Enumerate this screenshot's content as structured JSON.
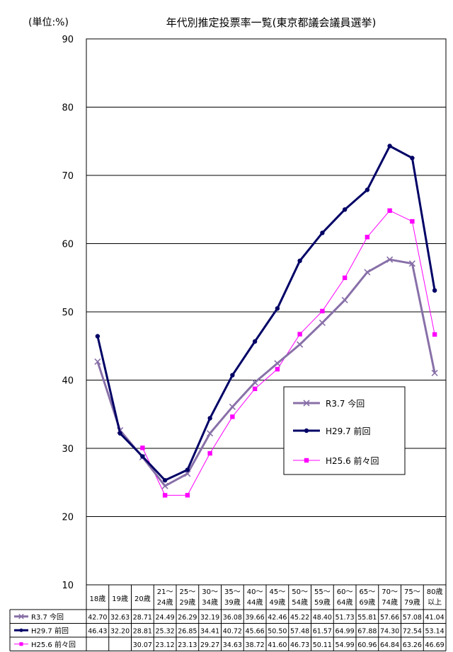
{
  "chart_data": {
    "type": "line",
    "title": "年代別推定投票率一覧(東京都議会議員選挙)",
    "unit_label": "(単位:%)",
    "ylim": [
      10,
      90
    ],
    "yticks": [
      10,
      20,
      30,
      40,
      50,
      60,
      70,
      80,
      90
    ],
    "grid": true,
    "legend_position": "center-right",
    "categories": [
      [
        "18歳"
      ],
      [
        "19歳"
      ],
      [
        "20歳"
      ],
      [
        "21～",
        "24歳"
      ],
      [
        "25～",
        "29歳"
      ],
      [
        "30～",
        "34歳"
      ],
      [
        "35～",
        "39歳"
      ],
      [
        "40～",
        "44歳"
      ],
      [
        "45～",
        "49歳"
      ],
      [
        "50～",
        "54歳"
      ],
      [
        "55～",
        "59歳"
      ],
      [
        "60～",
        "64歳"
      ],
      [
        "65～",
        "69歳"
      ],
      [
        "70～",
        "74歳"
      ],
      [
        "75～",
        "79歳"
      ],
      [
        "80歳",
        "以上"
      ]
    ],
    "series": [
      {
        "name": "R3.7 今回",
        "color": "#8870A8",
        "marker": "x",
        "values": [
          42.7,
          32.63,
          28.71,
          24.49,
          26.29,
          32.19,
          36.08,
          39.66,
          42.46,
          45.22,
          48.4,
          51.73,
          55.81,
          57.66,
          57.08,
          41.04
        ],
        "labels": [
          "42.70",
          "32.63",
          "28.71",
          "24.49",
          "26.29",
          "32.19",
          "36.08",
          "39.66",
          "42.46",
          "45.22",
          "48.40",
          "51.73",
          "55.81",
          "57.66",
          "57.08",
          "41.04"
        ]
      },
      {
        "name": "H29.7 前回",
        "color": "#000066",
        "marker": "circle",
        "values": [
          46.43,
          32.2,
          28.81,
          25.32,
          26.85,
          34.41,
          40.72,
          45.66,
          50.5,
          57.48,
          61.57,
          64.99,
          67.88,
          74.3,
          72.54,
          53.14
        ],
        "labels": [
          "46.43",
          "32.20",
          "28.81",
          "25.32",
          "26.85",
          "34.41",
          "40.72",
          "45.66",
          "50.50",
          "57.48",
          "61.57",
          "64.99",
          "67.88",
          "74.30",
          "72.54",
          "53.14"
        ]
      },
      {
        "name": "H25.6 前々回",
        "color": "#FF00FF",
        "marker": "square",
        "values": [
          null,
          null,
          30.07,
          23.12,
          23.13,
          29.27,
          34.63,
          38.72,
          41.6,
          46.73,
          50.11,
          54.99,
          60.96,
          64.84,
          63.26,
          46.69
        ],
        "labels": [
          "",
          "",
          "30.07",
          "23.12",
          "23.13",
          "29.27",
          "34.63",
          "38.72",
          "41.60",
          "46.73",
          "50.11",
          "54.99",
          "60.96",
          "64.84",
          "63.26",
          "46.69"
        ]
      }
    ]
  }
}
